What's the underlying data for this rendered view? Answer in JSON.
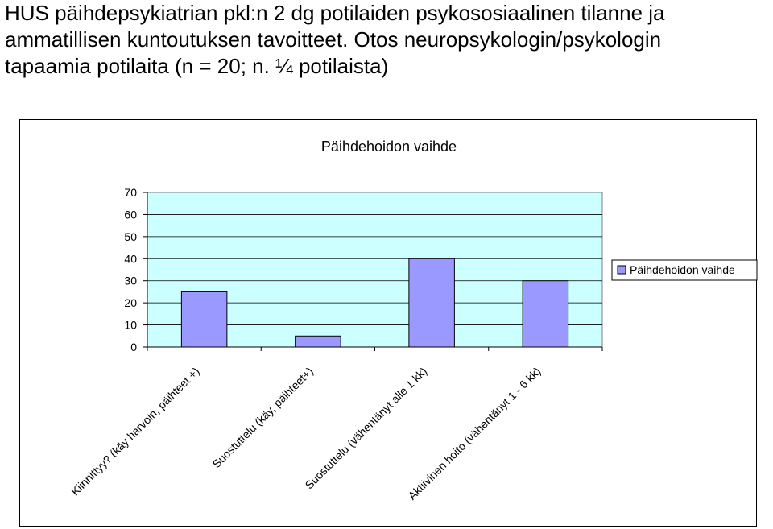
{
  "slide": {
    "title_lines": [
      "HUS päihdepsykiatrian pkl:n 2 dg potilaiden psykososiaalinen tilanne ja",
      "ammatillisen kuntoutuksen tavoitteet. Otos neuropsykologin/psykologin",
      "tapaamia potilaita (n = 20; n. ¼ potilaista)"
    ]
  },
  "chart_data": {
    "type": "bar",
    "title": "Päihdehoidon vaihde",
    "categories": [
      "Kiinnittyy? (käy harvoin, päihteet +)",
      "Suostuttelu (käy, päihteet+)",
      "Suostuttelu (vähentänyt alle 1 kk)",
      "Aktiivinen hoito (vähentänyt 1 - 6 kk)"
    ],
    "series": [
      {
        "name": "Päihdehoidon vaihde",
        "values": [
          25,
          5,
          40,
          30
        ]
      }
    ],
    "yticks": [
      "0",
      "10",
      "20",
      "30",
      "40",
      "50",
      "60",
      "70"
    ],
    "ylim": [
      0,
      70
    ],
    "grid": true,
    "legend_position": "right",
    "colors": {
      "bar_fill": "#9999ff",
      "plot_bg": "#ccffff",
      "gridline": "#000000"
    }
  }
}
